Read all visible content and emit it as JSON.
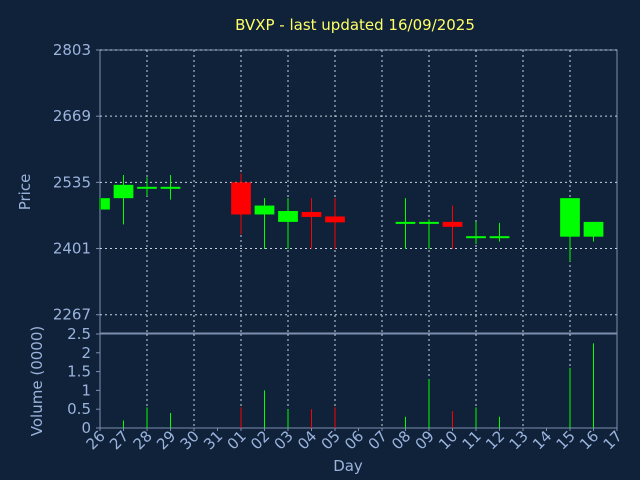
{
  "chart_data": {
    "type": "candlestick",
    "title": "BVXP - last updated 16/09/2025",
    "xlabel": "Day",
    "days": [
      "26",
      "27",
      "28",
      "29",
      "30",
      "31",
      "01",
      "02",
      "03",
      "04",
      "05",
      "06",
      "07",
      "08",
      "09",
      "10",
      "11",
      "12",
      "13",
      "14",
      "15",
      "16",
      "17"
    ],
    "price": {
      "ylabel": "Price",
      "yticks": [
        2267,
        2401,
        2535,
        2669,
        2803
      ],
      "ylim": [
        2230,
        2803
      ]
    },
    "volume": {
      "ylabel": "Volume (0000)",
      "yticks": [
        "0",
        "0.5",
        "1",
        "1.5",
        "2",
        "2.5"
      ],
      "ylim": [
        0,
        2.5
      ]
    },
    "candles": [
      {
        "day": "26",
        "open": 2480,
        "close": 2503,
        "high": 2503,
        "low": 2480,
        "volume": 0.0
      },
      {
        "day": "27",
        "open": 2503,
        "close": 2530,
        "high": 2550,
        "low": 2450,
        "volume": 0.2
      },
      {
        "day": "28",
        "open": 2522,
        "close": 2526,
        "high": 2545,
        "low": 2508,
        "volume": 0.55
      },
      {
        "day": "29",
        "open": 2522,
        "close": 2526,
        "high": 2550,
        "low": 2500,
        "volume": 0.4
      },
      {
        "day": "01",
        "open": 2535,
        "close": 2470,
        "high": 2553,
        "low": 2430,
        "volume": 0.55
      },
      {
        "day": "02",
        "open": 2470,
        "close": 2488,
        "high": 2503,
        "low": 2400,
        "volume": 1.0
      },
      {
        "day": "03",
        "open": 2455,
        "close": 2477,
        "high": 2503,
        "low": 2400,
        "volume": 0.5
      },
      {
        "day": "04",
        "open": 2475,
        "close": 2465,
        "high": 2503,
        "low": 2400,
        "volume": 0.5
      },
      {
        "day": "05",
        "open": 2466,
        "close": 2454,
        "high": 2503,
        "low": 2400,
        "volume": 0.55
      },
      {
        "day": "08",
        "open": 2452,
        "close": 2455,
        "high": 2503,
        "low": 2400,
        "volume": 0.3
      },
      {
        "day": "09",
        "open": 2452,
        "close": 2455,
        "high": 2460,
        "low": 2400,
        "volume": 1.3
      },
      {
        "day": "10",
        "open": 2455,
        "close": 2445,
        "high": 2488,
        "low": 2400,
        "volume": 0.45
      },
      {
        "day": "11",
        "open": 2422,
        "close": 2426,
        "high": 2455,
        "low": 2410,
        "volume": 0.55
      },
      {
        "day": "12",
        "open": 2422,
        "close": 2426,
        "high": 2453,
        "low": 2415,
        "volume": 0.3
      },
      {
        "day": "15",
        "open": 2425,
        "close": 2503,
        "high": 2503,
        "low": 2375,
        "volume": 1.6
      },
      {
        "day": "16",
        "open": 2425,
        "close": 2455,
        "high": 2455,
        "low": 2415,
        "volume": 2.25
      }
    ],
    "colors": {
      "up": "#00ff00",
      "down": "#ff0000",
      "background": "#10213a",
      "plot_border": "#7a8fae",
      "grid": "#c8d2e0",
      "tick_text": "#9ab4dc",
      "title": "#ffff66"
    },
    "grid": true
  }
}
